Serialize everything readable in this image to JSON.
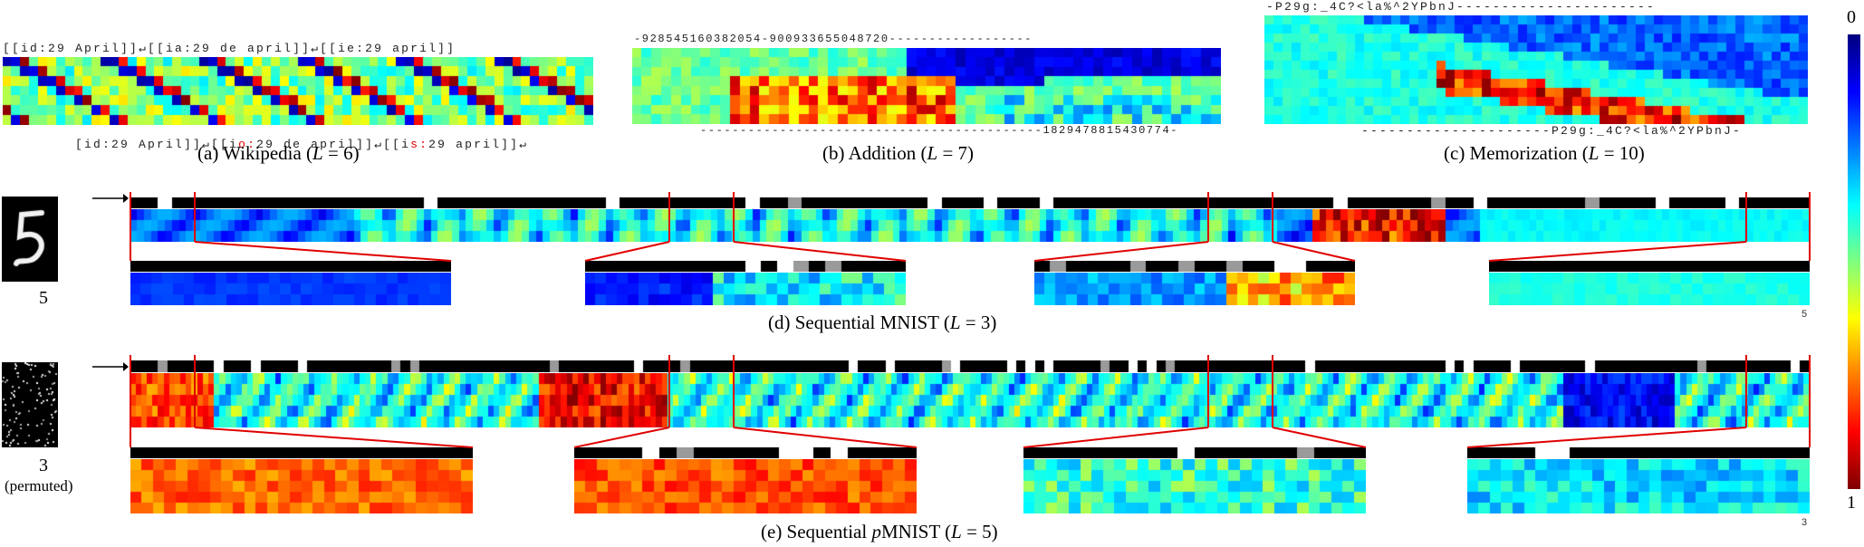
{
  "colors": {
    "connector": "#e00000",
    "gate_bar": "#000000"
  },
  "panels": {
    "a": {
      "top_seq": "[[id:29 April]]↵[[ia:29 de april]]↵[[ie:29 april]]",
      "bottom_pre": "[id:29 April]]↵[[i",
      "bottom_red1": "o:",
      "bottom_mid": "29 de april]]↵[[i",
      "bottom_red2": "s:",
      "bottom_post": "29 april]]↵",
      "caption_prefix": "(a) Wikipedia (",
      "caption_var": "L",
      "caption_suffix": " = 6)"
    },
    "b": {
      "top_seq": "-928545160382054-900933655048720------------------",
      "bottom_seq": "-------------------------------------------1829478815430774-",
      "caption_prefix": "(b) Addition (",
      "caption_var": "L",
      "caption_suffix": " = 7)"
    },
    "c": {
      "top_seq": "-P29g:_4C?<la%^2YPbnJ----------------------",
      "bottom_seq": "---------------------P29g:_4C?<la%^2YPbnJ-",
      "caption_prefix": "(c) Memorization (",
      "caption_var": "L",
      "caption_suffix": " = 10)"
    },
    "d": {
      "digit_label": "5",
      "corner_label": "5",
      "caption_prefix": "(d) Sequential MNIST (",
      "caption_var": "L",
      "caption_suffix": " = 3)"
    },
    "e": {
      "digit_label": "3",
      "digit_note": "(permuted)",
      "corner_label": "3",
      "caption_prefix": "(e) Sequential ",
      "caption_p": "p",
      "caption_mid": "MNIST (",
      "caption_var": "L",
      "caption_suffix": " = 5)"
    }
  },
  "colorbar": {
    "min_label": "0",
    "max_label": "1"
  }
}
